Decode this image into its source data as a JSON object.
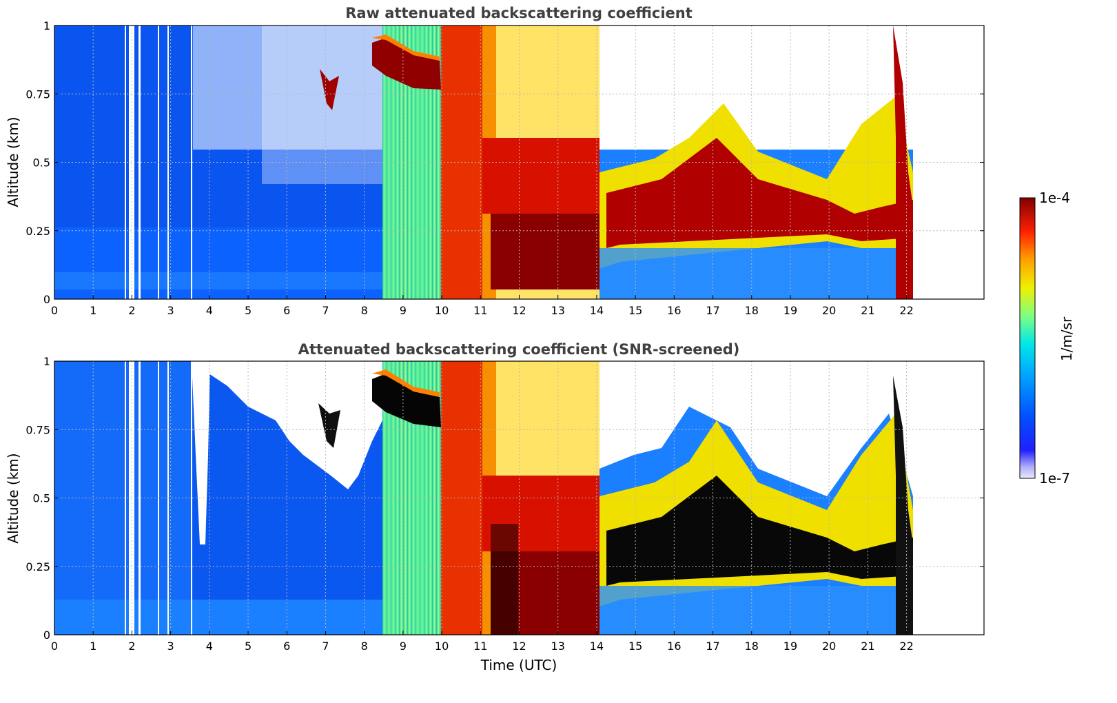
{
  "chart_data": [
    {
      "type": "heatmap",
      "title": "Raw attenuated backscattering coefficient",
      "xlabel": "",
      "ylabel": "Altitude (km)",
      "xlim": [
        0,
        24
      ],
      "ylim": [
        0,
        1
      ],
      "x_ticks": [
        "0",
        "1",
        "2",
        "3",
        "4",
        "5",
        "6",
        "7",
        "8",
        "9",
        "10",
        "11",
        "12",
        "13",
        "14",
        "15",
        "16",
        "17",
        "18",
        "19",
        "20",
        "21",
        "22"
      ],
      "y_ticks": [
        "0",
        "0.25",
        "0.5",
        "0.75",
        "1"
      ],
      "grid": true,
      "data_end_time": 22.2,
      "profile_gaps_utc": [
        1.85,
        2.0,
        2.2,
        2.7,
        2.95,
        3.55
      ],
      "features": [
        {
          "name": "residual layer",
          "t_start": 8.2,
          "t_end": 10.0,
          "alt_top": 0.9,
          "alt_bottom": 0.78
        },
        {
          "name": "isolated cloud",
          "t_start": 6.9,
          "t_end": 7.4,
          "alt_top": 0.8,
          "alt_bottom": 0.7
        },
        {
          "name": "boundary layer",
          "t_start": 11.2,
          "t_end": 21.8,
          "alt_top": 0.38,
          "alt_bottom": 0.2
        }
      ]
    },
    {
      "type": "heatmap",
      "title": "Attenuated backscattering coefficient (SNR-screened)",
      "xlabel": "Time (UTC)",
      "ylabel": "Altitude (km)",
      "xlim": [
        0,
        24
      ],
      "ylim": [
        0,
        1
      ],
      "x_ticks": [
        "0",
        "1",
        "2",
        "3",
        "4",
        "5",
        "6",
        "7",
        "8",
        "9",
        "10",
        "11",
        "12",
        "13",
        "14",
        "15",
        "16",
        "17",
        "18",
        "19",
        "20",
        "21",
        "22"
      ],
      "y_ticks": [
        "0",
        "0.25",
        "0.5",
        "0.75",
        "1"
      ],
      "grid": true,
      "data_end_time": 22.2,
      "profile_gaps_utc": [
        1.85,
        2.0,
        2.2,
        2.7,
        2.95,
        3.55
      ],
      "screened_notch": {
        "t_start": 3.6,
        "t_end": 4.0,
        "alt_bottom": 0.33
      }
    }
  ],
  "colorbar": {
    "label": "1/m/sr",
    "max_label": "1e-4",
    "min_label": "1e-7",
    "colormap": "jet"
  }
}
